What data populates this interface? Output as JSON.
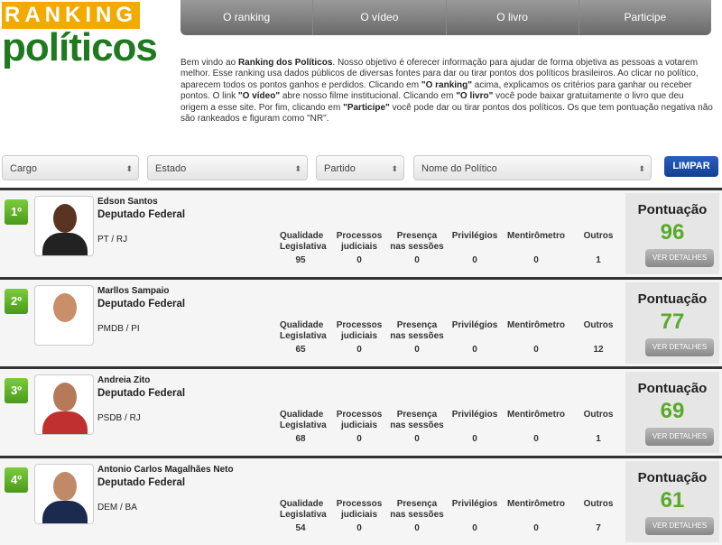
{
  "logo": {
    "top": "RANKING",
    "bottom": "políticos"
  },
  "nav": [
    "O ranking",
    "O vídeo",
    "O livro",
    "Participe"
  ],
  "intro": {
    "p1": "Bem vindo ao ",
    "b1": "Ranking dos Políticos",
    "p2": ". Nosso objetivo é oferecer informação para ajudar de forma objetiva as pessoas a votarem melhor. Esse ranking usa dados públicos de diversas fontes para dar ou tirar pontos dos políticos brasileiros. Ao clicar no político, aparecem todos os pontos ganhos e perdidos. Clicando em ",
    "b2": "\"O ranking\"",
    "p3": " acima, explicamos os critérios para ganhar ou receber pontos. O link ",
    "b3": "\"O vídeo\"",
    "p4": " abre nosso filme institucional. Clicando em ",
    "b4": "\"O livro\"",
    "p5": " você pode baixar gratuitamente o livro que deu origem a esse site. Por fim, clicando em ",
    "b5": "\"Participe\"",
    "p6": " você pode dar ou tirar pontos dos políticos. Os que tem pontuação negativa não são rankeados e figuram como \"NR\"."
  },
  "filters": {
    "cargo": "Cargo",
    "estado": "Estado",
    "partido": "Partido",
    "nome": "Nome do Político",
    "limpar": "LIMPAR"
  },
  "stat_headers": [
    "Qualidade Legislativa",
    "Processos judiciais",
    "Presença nas sessões",
    "Privilégios",
    "Mentirômetro",
    "Outros"
  ],
  "score_label": "Pontuação",
  "details_label": "VER DETALHES",
  "politicians": [
    {
      "rank": "1º",
      "name": "Edson Santos",
      "role": "Deputado Federal",
      "party": "PT / RJ",
      "stats": [
        "95",
        "0",
        "0",
        "0",
        "0",
        "1"
      ],
      "score": "96"
    },
    {
      "rank": "2º",
      "name": "Marllos Sampaio",
      "role": "Deputado Federal",
      "party": "PMDB / PI",
      "stats": [
        "65",
        "0",
        "0",
        "0",
        "0",
        "12"
      ],
      "score": "77"
    },
    {
      "rank": "3º",
      "name": "Andreia Zito",
      "role": "Deputado Federal",
      "party": "PSDB / RJ",
      "stats": [
        "68",
        "0",
        "0",
        "0",
        "0",
        "1"
      ],
      "score": "69"
    },
    {
      "rank": "4º",
      "name": "Antonio Carlos Magalhães Neto",
      "role": "Deputado Federal",
      "party": "DEM / BA",
      "stats": [
        "54",
        "0",
        "0",
        "0",
        "0",
        "7"
      ],
      "score": "61"
    }
  ]
}
